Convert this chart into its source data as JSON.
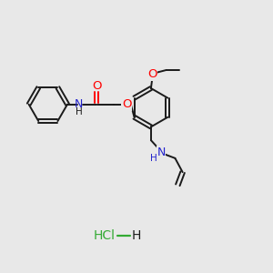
{
  "bg_color": "#e8e8e8",
  "bond_color": "#1a1a1a",
  "O_color": "#ff0000",
  "N_color_amide": "#2222cc",
  "N_color_amine": "#2222cc",
  "Cl_color": "#33aa33",
  "H_color": "#1a1a1a",
  "lw": 1.4,
  "ring_r": 0.75,
  "xlim": [
    0,
    10
  ],
  "ylim": [
    0,
    10
  ]
}
